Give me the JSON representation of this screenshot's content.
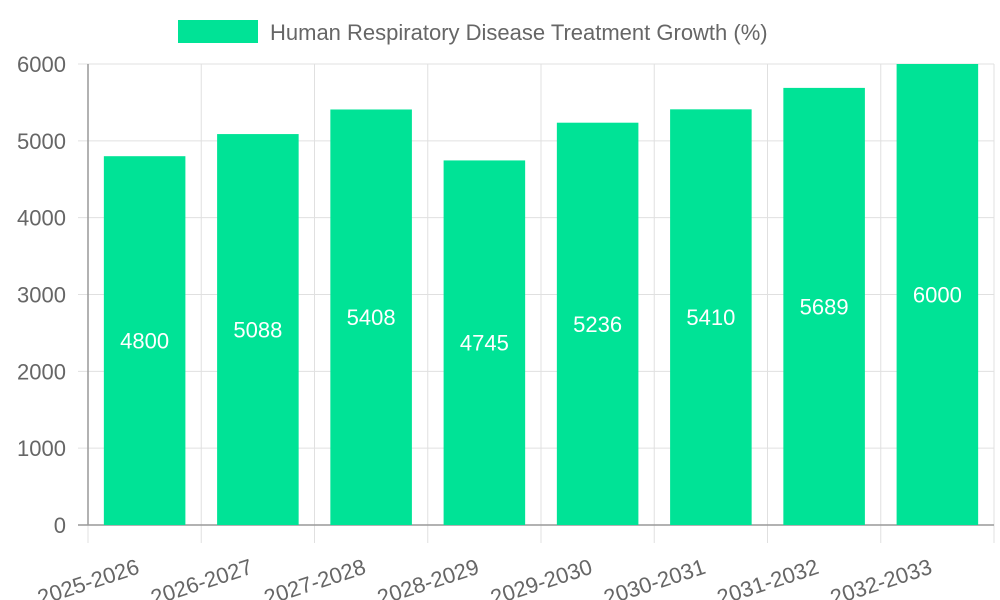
{
  "chart_data": {
    "type": "bar",
    "categories": [
      "2025-2026",
      "2026-2027",
      "2027-2028",
      "2028-2029",
      "2029-2030",
      "2030-2031",
      "2031-2032",
      "2032-2033"
    ],
    "series": [
      {
        "name": "Human Respiratory Disease Treatment Growth (%)",
        "values": [
          4800,
          5088,
          5408,
          4745,
          5236,
          5410,
          5689,
          6000
        ],
        "color": "#00E396"
      }
    ],
    "ylim": [
      0,
      6000
    ],
    "yticks": [
      0,
      1000,
      2000,
      3000,
      4000,
      5000,
      6000
    ],
    "grid": true,
    "legend": "top-center",
    "data_labels": true
  }
}
